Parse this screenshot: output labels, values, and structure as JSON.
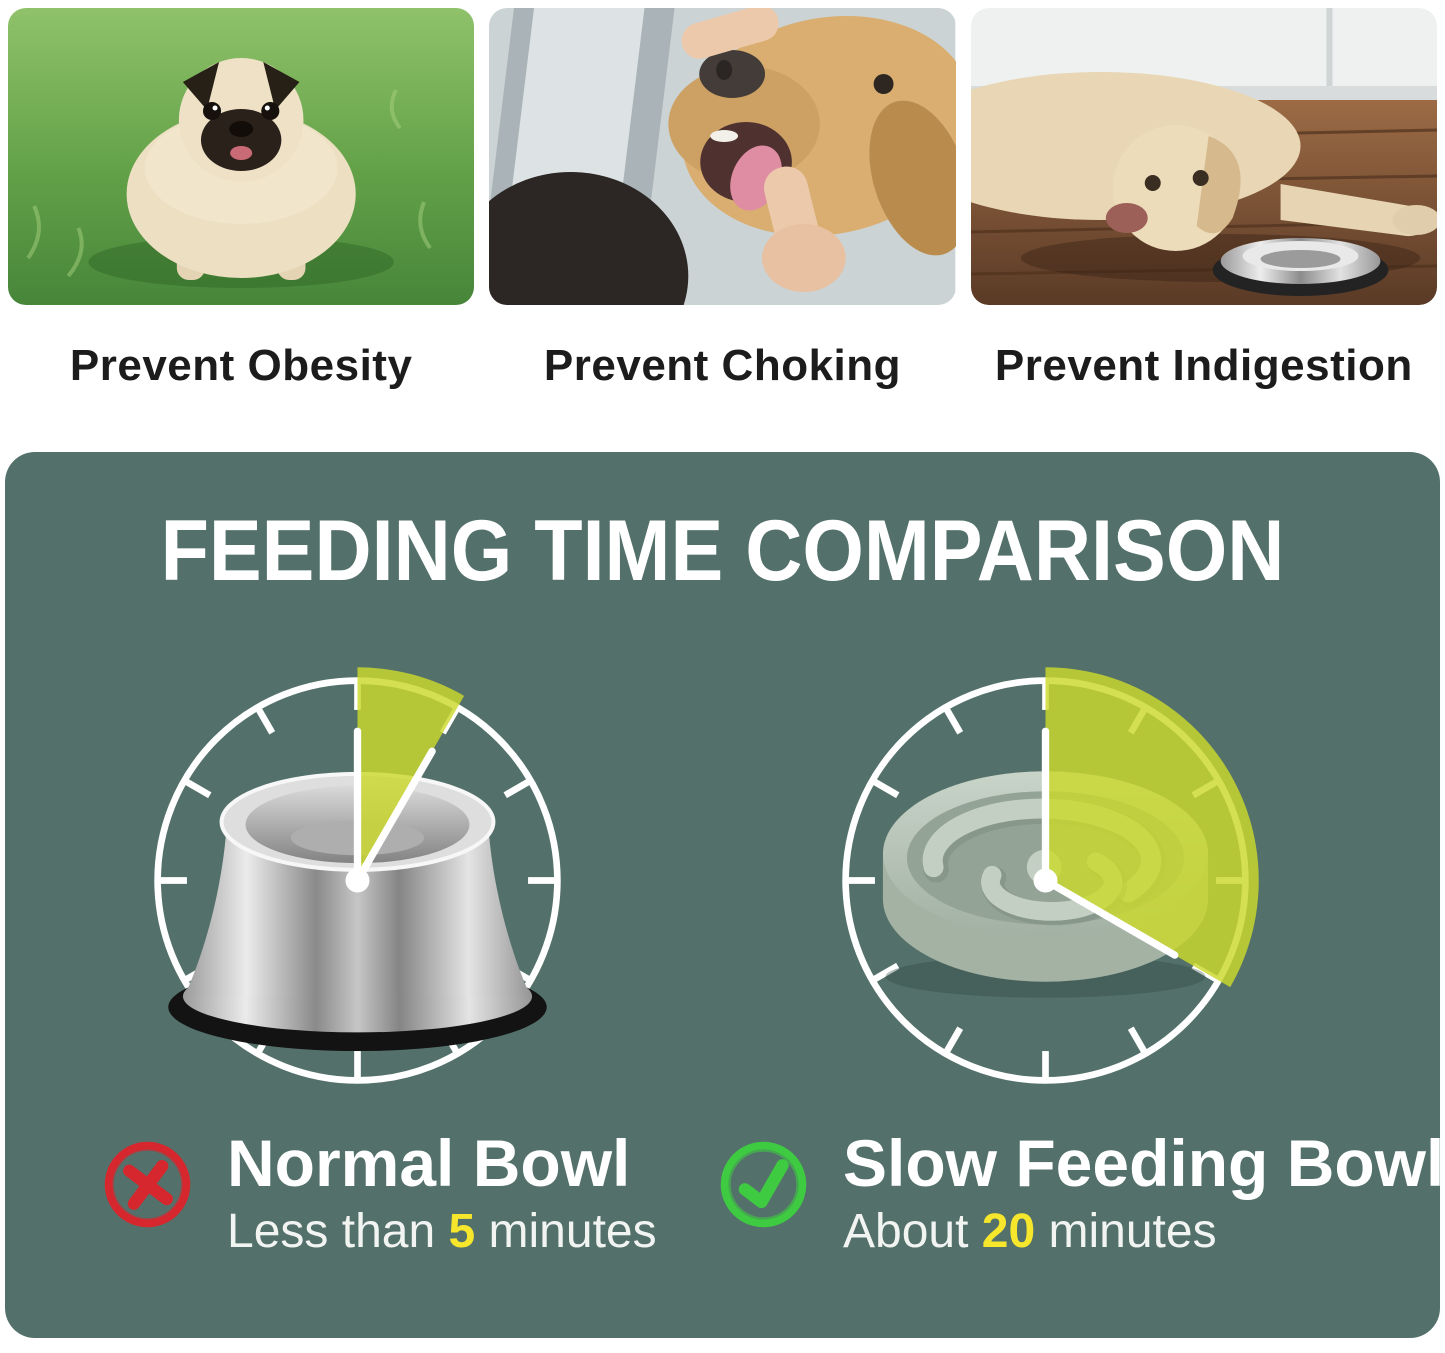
{
  "benefits": [
    {
      "caption": "Prevent Obesity",
      "photo": "overweight-pug-standing-on-grass"
    },
    {
      "caption": "Prevent Choking",
      "photo": "owner-checking-golden-retriever-mouth"
    },
    {
      "caption": "Prevent Indigestion",
      "photo": "labrador-lying-on-floor-beside-steel-bowl"
    }
  ],
  "comparison": {
    "title": "FEEDING TIME COMPARISON",
    "clocks": [
      {
        "name": "normal-bowl-clock",
        "bowl": "stainless-steel-bowl",
        "minutes": 5,
        "wedge_degrees": 30
      },
      {
        "name": "slow-feeding-bowl-clock",
        "bowl": "slow-feeder-maze-bowl",
        "minutes": 20,
        "wedge_degrees": 120
      }
    ],
    "results": [
      {
        "verdict_icon": "red-cross-icon",
        "name": "Normal Bowl",
        "desc_prefix": "Less than ",
        "desc_value": "5",
        "desc_suffix": " minutes"
      },
      {
        "verdict_icon": "green-check-icon",
        "name": "Slow Feeding Bowl",
        "desc_prefix": "About ",
        "desc_value": "20",
        "desc_suffix": " minutes"
      }
    ],
    "colors": {
      "panel": "#53716a",
      "wedge": "rgba(203,217,44,0.82)",
      "highlight": "#f7e72c",
      "cross": "#d6262e",
      "check": "#3ecb41"
    }
  }
}
